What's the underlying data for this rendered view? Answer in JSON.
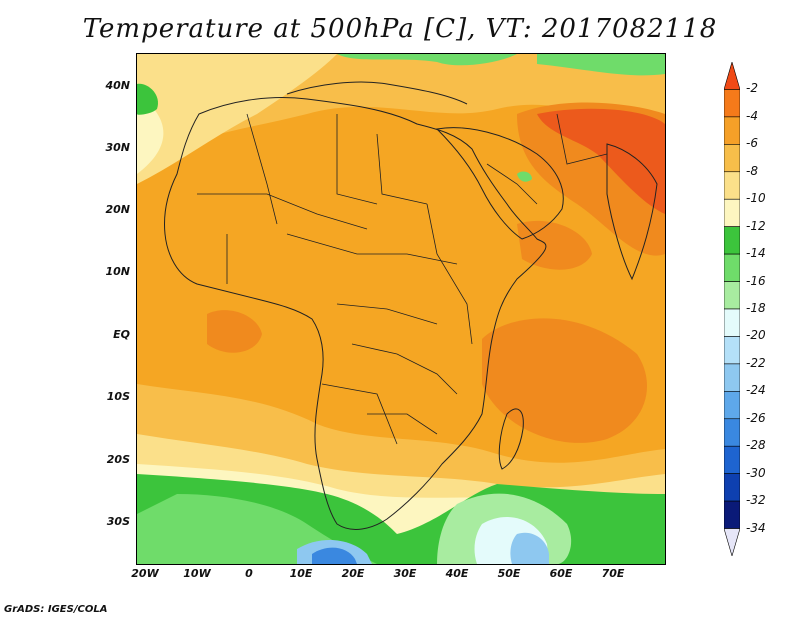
{
  "title": "Temperature at 500hPa [C], VT: 2017082118",
  "credit": "GrADS: IGES/COLA",
  "lat_labels": [
    "40N",
    "30N",
    "20N",
    "10N",
    "EQ",
    "10S",
    "20S",
    "30S"
  ],
  "lon_labels": [
    "20W",
    "10W",
    "0",
    "10E",
    "20E",
    "30E",
    "40E",
    "50E",
    "60E",
    "70E"
  ],
  "colorbar": {
    "labels": [
      "-2",
      "-4",
      "-6",
      "-8",
      "-10",
      "-12",
      "-14",
      "-16",
      "-18",
      "-20",
      "-22",
      "-24",
      "-26",
      "-28",
      "-30",
      "-32",
      "-34"
    ],
    "colors": [
      "#f04a16",
      "#f57a1a",
      "#f5a028",
      "#f7be4a",
      "#fbe08a",
      "#fdf6c0",
      "#3cc43c",
      "#6fdc6a",
      "#a8eca0",
      "#e4fbfb",
      "#b4e0f8",
      "#8ec8f0",
      "#5ea8ea",
      "#3a88e0",
      "#1e64d0",
      "#0e40b0",
      "#0a1a78",
      "#e6e6f8"
    ]
  },
  "map_colors": {
    "base": "#f5a623",
    "dark_orange": "#f08a1e",
    "red_orange": "#ec5a1c",
    "light_orange": "#f8be4a",
    "yellow": "#fbe08a",
    "pale_yellow": "#fdf6c0",
    "green": "#3cc43c",
    "light_green": "#6fdc6a",
    "pale_green": "#a8eca0",
    "cyan": "#e4fbfb",
    "light_blue": "#8ec8f0",
    "blue": "#3a88e0"
  }
}
